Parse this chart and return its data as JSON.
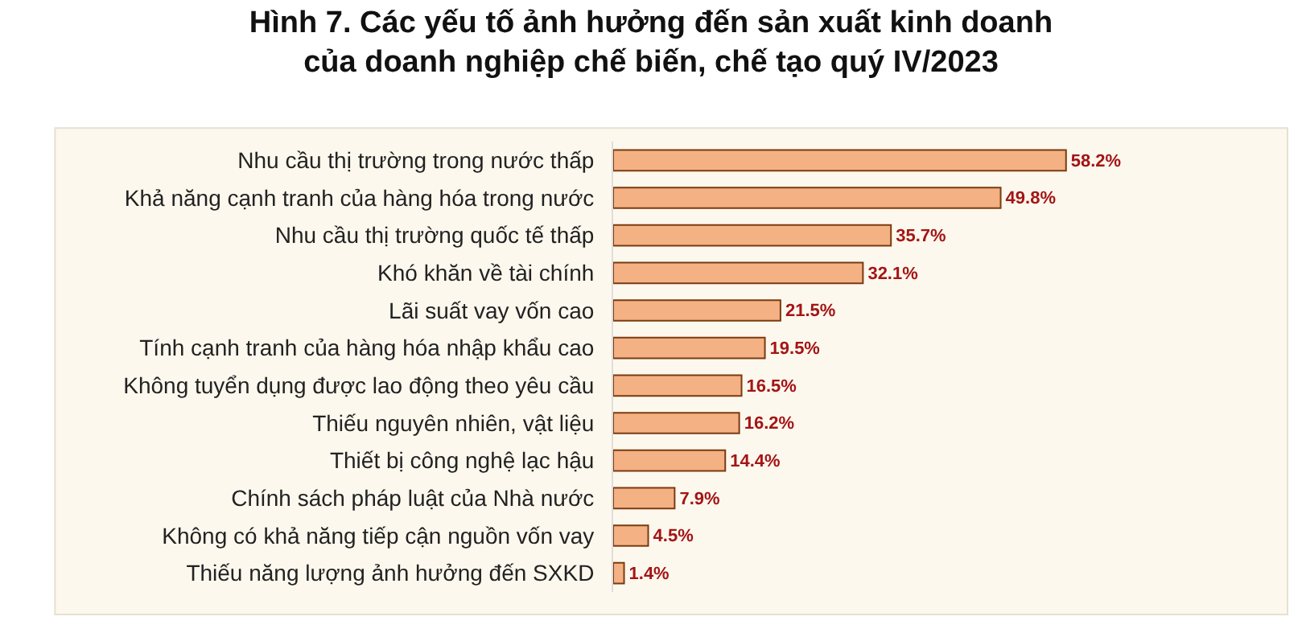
{
  "chart_data": {
    "type": "bar",
    "orientation": "horizontal",
    "title": "Hình 7. Các yếu tố ảnh hưởng đến sản xuất kinh doanh\ncủa doanh nghiệp chế biến, chế tạo quý IV/2023",
    "categories": [
      "Nhu cầu thị trường trong nước thấp",
      "Khả năng cạnh tranh của hàng hóa trong nước",
      "Nhu cầu thị trường quốc tế thấp",
      "Khó khăn về tài chính",
      "Lãi suất vay vốn cao",
      "Tính cạnh tranh của hàng hóa nhập khẩu cao",
      "Không tuyển dụng được lao động theo yêu cầu",
      "Thiếu nguyên nhiên, vật liệu",
      "Thiết bị công nghệ lạc hậu",
      "Chính sách pháp luật của Nhà nước",
      "Không có khả năng tiếp cận nguồn vốn vay",
      "Thiếu năng lượng ảnh hưởng đến SXKD"
    ],
    "values": [
      58.2,
      49.8,
      35.7,
      32.1,
      21.5,
      19.5,
      16.5,
      16.2,
      14.4,
      7.9,
      4.5,
      1.4
    ],
    "value_labels": [
      "58.2%",
      "49.8%",
      "35.7%",
      "32.1%",
      "21.5%",
      "19.5%",
      "16.5%",
      "16.2%",
      "14.4%",
      "7.9%",
      "4.5%",
      "1.4%"
    ],
    "color": "#f4b183",
    "legend": false
  }
}
